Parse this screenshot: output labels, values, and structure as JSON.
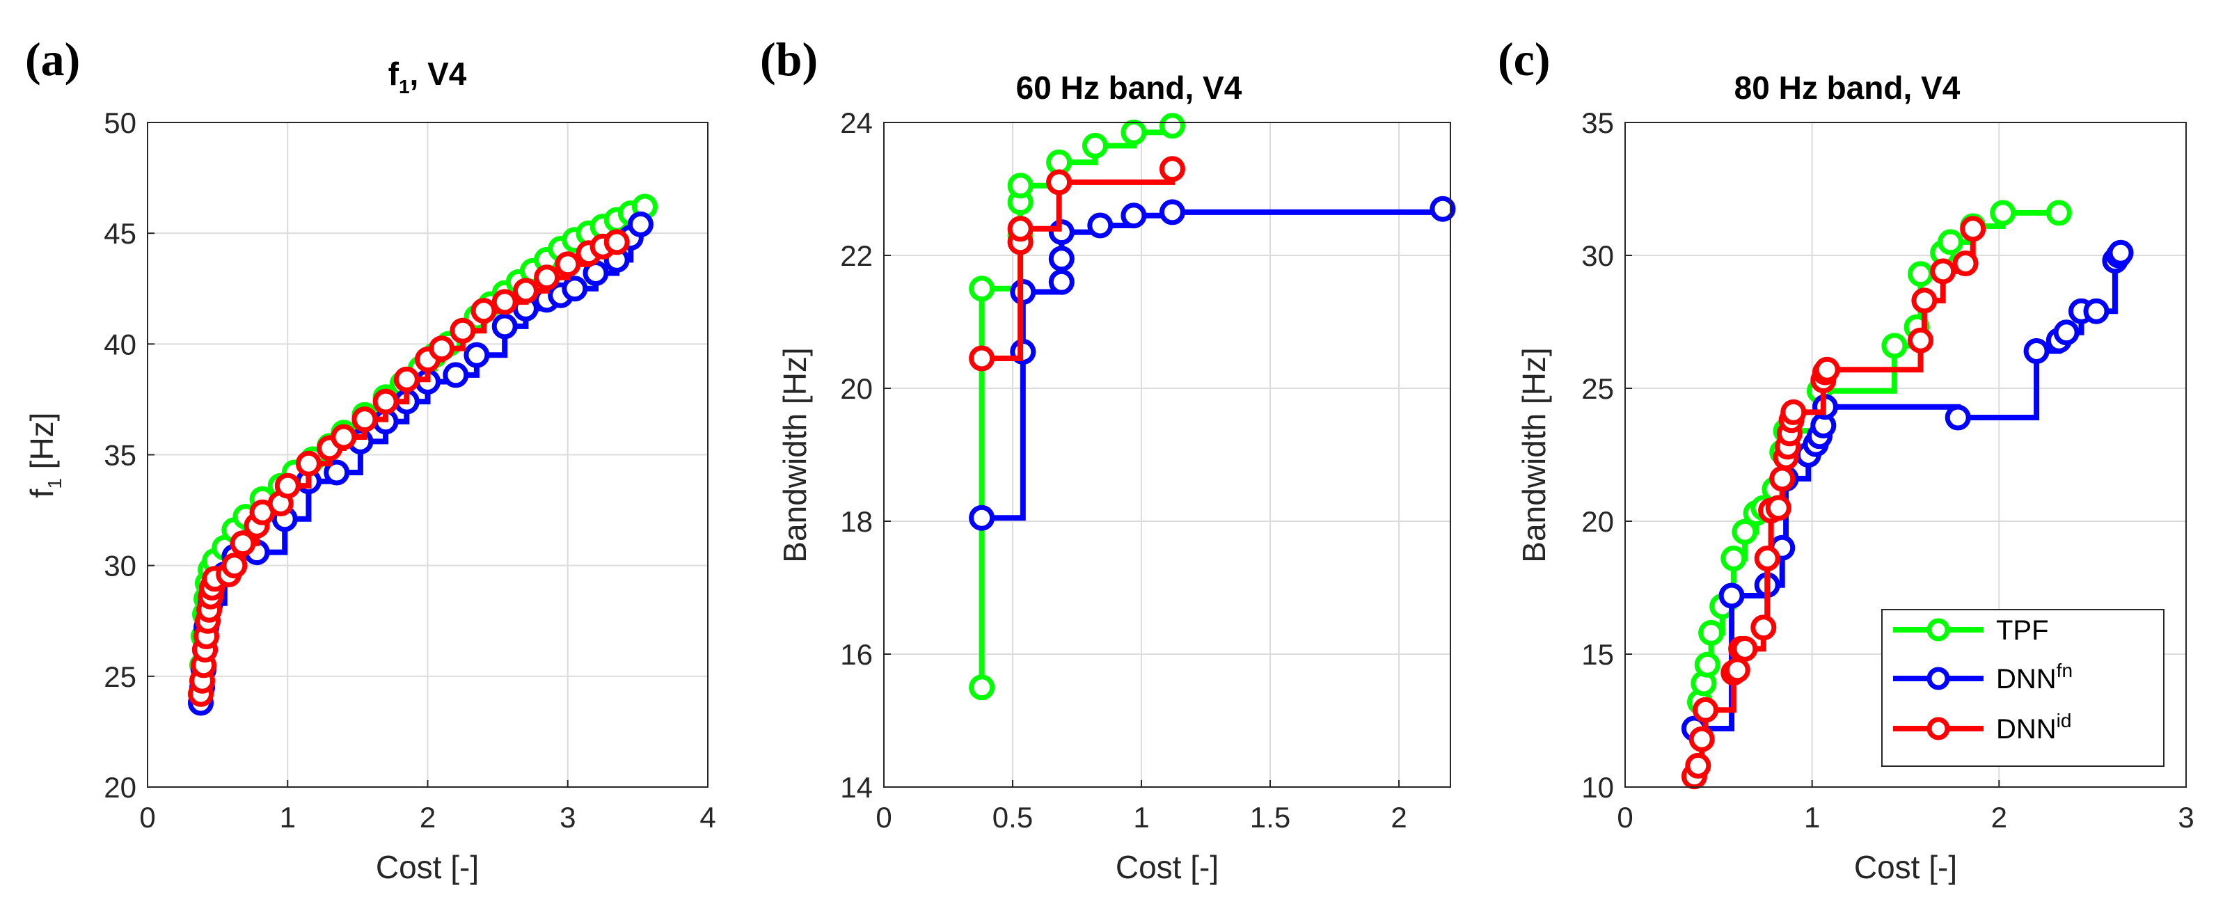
{
  "chart_data": [
    {
      "type": "line",
      "panel_label": "(a)",
      "title": "f",
      "title_sub": "1",
      "title_rest": ", V4",
      "xlabel": "Cost [-]",
      "ylabel": "f",
      "ylabel_sub": "1",
      "ylabel_rest": " [Hz]",
      "xlim": [
        0,
        4
      ],
      "ylim": [
        20,
        50
      ],
      "xticks": [
        0,
        1,
        2,
        3,
        4
      ],
      "xtick_labels": [
        "0",
        "1",
        "2",
        "3",
        "4"
      ],
      "yticks": [
        20,
        25,
        30,
        35,
        40,
        45,
        50
      ],
      "ytick_labels": [
        "20",
        "25",
        "30",
        "35",
        "40",
        "45",
        "50"
      ],
      "grid": true,
      "series": [
        {
          "name": "TPF",
          "color": "#00ff00",
          "x": [
            0.38,
            0.39,
            0.4,
            0.41,
            0.42,
            0.43,
            0.45,
            0.48,
            0.55,
            0.62,
            0.7,
            0.82,
            0.95,
            1.05,
            1.18,
            1.3,
            1.4,
            1.55,
            1.7,
            1.82,
            1.95,
            2.05,
            2.15,
            2.25,
            2.35,
            2.45,
            2.55,
            2.65,
            2.75,
            2.85,
            2.95,
            3.05,
            3.15,
            3.25,
            3.35,
            3.45,
            3.55
          ],
          "y": [
            24.2,
            25.5,
            26.8,
            27.8,
            28.5,
            29.2,
            29.8,
            30.2,
            30.8,
            31.6,
            32.2,
            33.0,
            33.6,
            34.2,
            34.8,
            35.4,
            36.0,
            36.8,
            37.6,
            38.2,
            38.9,
            39.5,
            40.0,
            40.6,
            41.2,
            41.8,
            42.3,
            42.8,
            43.3,
            43.8,
            44.3,
            44.7,
            45.0,
            45.3,
            45.6,
            45.9,
            46.2
          ]
        },
        {
          "name": "DNN^fn",
          "color": "#0000ff",
          "x": [
            0.38,
            0.39,
            0.4,
            0.41,
            0.42,
            0.45,
            0.55,
            0.62,
            0.78,
            0.98,
            1.15,
            1.35,
            1.52,
            1.7,
            1.85,
            2.0,
            2.2,
            2.35,
            2.55,
            2.7,
            2.85,
            2.95,
            3.05,
            3.2,
            3.35,
            3.45,
            3.52
          ],
          "y": [
            23.8,
            24.5,
            25.3,
            26.2,
            27.2,
            28.3,
            29.6,
            30.4,
            30.6,
            32.1,
            33.8,
            34.2,
            35.6,
            36.5,
            37.4,
            38.3,
            38.6,
            39.5,
            40.8,
            41.6,
            42.0,
            42.2,
            42.5,
            43.2,
            43.8,
            44.8,
            45.4
          ]
        },
        {
          "name": "DNN^id",
          "color": "#ff0000",
          "x": [
            0.38,
            0.39,
            0.4,
            0.41,
            0.42,
            0.43,
            0.44,
            0.45,
            0.46,
            0.48,
            0.58,
            0.62,
            0.68,
            0.78,
            0.82,
            0.95,
            1.0,
            1.15,
            1.3,
            1.4,
            1.55,
            1.7,
            1.85,
            2.0,
            2.1,
            2.25,
            2.4,
            2.55,
            2.7,
            2.85,
            3.0,
            3.15,
            3.25,
            3.35
          ],
          "y": [
            24.2,
            24.8,
            25.5,
            26.2,
            26.8,
            27.5,
            28.0,
            28.6,
            29.0,
            29.4,
            29.6,
            30.0,
            31.0,
            31.8,
            32.4,
            32.8,
            33.6,
            34.6,
            35.3,
            35.8,
            36.6,
            37.4,
            38.4,
            39.3,
            39.8,
            40.6,
            41.5,
            41.9,
            42.4,
            43.0,
            43.6,
            44.1,
            44.4,
            44.6
          ]
        }
      ]
    },
    {
      "type": "line",
      "panel_label": "(b)",
      "title": "60 Hz band, V4",
      "xlabel": "Cost [-]",
      "ylabel": "Bandwidth [Hz]",
      "xlim": [
        0,
        2.2
      ],
      "ylim": [
        14,
        24
      ],
      "xticks": [
        0,
        0.5,
        1,
        1.5,
        2
      ],
      "xtick_labels": [
        "0",
        "0.5",
        "1",
        "1.5",
        "2"
      ],
      "yticks": [
        14,
        16,
        18,
        20,
        22,
        24
      ],
      "ytick_labels": [
        "14",
        "16",
        "18",
        "20",
        "22",
        "24"
      ],
      "grid": true,
      "series": [
        {
          "name": "TPF",
          "color": "#00ff00",
          "x": [
            0.38,
            0.38,
            0.53,
            0.53,
            0.53,
            0.68,
            0.82,
            0.97,
            1.12
          ],
          "y": [
            15.5,
            21.5,
            22.3,
            22.8,
            23.05,
            23.4,
            23.65,
            23.85,
            23.95
          ]
        },
        {
          "name": "DNN^fn",
          "color": "#0000ff",
          "x": [
            0.38,
            0.54,
            0.54,
            0.69,
            0.69,
            0.69,
            0.84,
            0.97,
            1.12,
            2.17
          ],
          "y": [
            18.05,
            20.55,
            21.45,
            21.6,
            21.95,
            22.35,
            22.45,
            22.6,
            22.65,
            22.7
          ]
        },
        {
          "name": "DNN^id",
          "color": "#ff0000",
          "x": [
            0.38,
            0.53,
            0.53,
            0.68,
            1.12
          ],
          "y": [
            20.45,
            22.2,
            22.4,
            23.1,
            23.3
          ]
        }
      ]
    },
    {
      "type": "line",
      "panel_label": "(c)",
      "title": "80 Hz band, V4",
      "xlabel": "Cost [-]",
      "ylabel": "Bandwidth [Hz]",
      "xlim": [
        0,
        3
      ],
      "ylim": [
        10,
        35
      ],
      "xticks": [
        0,
        1,
        2,
        3
      ],
      "xtick_labels": [
        "0",
        "1",
        "2",
        "3"
      ],
      "yticks": [
        10,
        15,
        20,
        25,
        30,
        35
      ],
      "ytick_labels": [
        "10",
        "15",
        "20",
        "25",
        "30",
        "35"
      ],
      "grid": true,
      "legend_position": "bottom-right",
      "series": [
        {
          "name": "TPF",
          "color": "#00ff00",
          "x": [
            0.4,
            0.42,
            0.44,
            0.46,
            0.52,
            0.58,
            0.64,
            0.7,
            0.74,
            0.8,
            0.84,
            0.86,
            1.04,
            1.44,
            1.56,
            1.58,
            1.7,
            1.74,
            1.86,
            2.02,
            2.32
          ],
          "y": [
            13.2,
            13.9,
            14.6,
            15.8,
            16.8,
            18.6,
            19.6,
            20.3,
            20.5,
            21.2,
            22.6,
            23.4,
            24.9,
            26.6,
            27.3,
            29.3,
            30.1,
            30.5,
            31.1,
            31.6,
            31.6
          ]
        },
        {
          "name": "DNN^fn",
          "color": "#0000ff",
          "x": [
            0.37,
            0.57,
            0.76,
            0.84,
            0.86,
            0.98,
            1.02,
            1.04,
            1.06,
            1.07,
            1.78,
            2.2,
            2.32,
            2.36,
            2.44,
            2.52,
            2.62,
            2.64,
            2.65
          ],
          "y": [
            12.2,
            17.2,
            17.6,
            19.0,
            21.6,
            22.5,
            22.9,
            23.2,
            23.6,
            24.3,
            23.9,
            26.4,
            26.8,
            27.1,
            27.9,
            27.9,
            29.8,
            30.0,
            30.1
          ]
        },
        {
          "name": "DNN^id",
          "color": "#ff0000",
          "x": [
            0.37,
            0.39,
            0.41,
            0.43,
            0.58,
            0.6,
            0.62,
            0.64,
            0.74,
            0.76,
            0.78,
            0.82,
            0.84,
            0.86,
            0.87,
            0.88,
            0.89,
            0.9,
            1.06,
            1.07,
            1.08,
            1.58,
            1.6,
            1.7,
            1.82,
            1.86
          ],
          "y": [
            10.4,
            10.8,
            11.8,
            12.9,
            14.3,
            14.4,
            15.2,
            15.2,
            16.0,
            18.6,
            20.4,
            20.5,
            21.6,
            22.4,
            22.8,
            23.3,
            23.8,
            24.1,
            25.3,
            25.6,
            25.7,
            26.8,
            28.3,
            29.4,
            29.7,
            31.0
          ]
        }
      ]
    }
  ],
  "legend": {
    "entries": [
      {
        "label": "TPF",
        "sup": "",
        "color": "#00ff00"
      },
      {
        "label": "DNN",
        "sup": "fn",
        "color": "#0000ff"
      },
      {
        "label": "DNN",
        "sup": "id",
        "color": "#ff0000"
      }
    ]
  }
}
